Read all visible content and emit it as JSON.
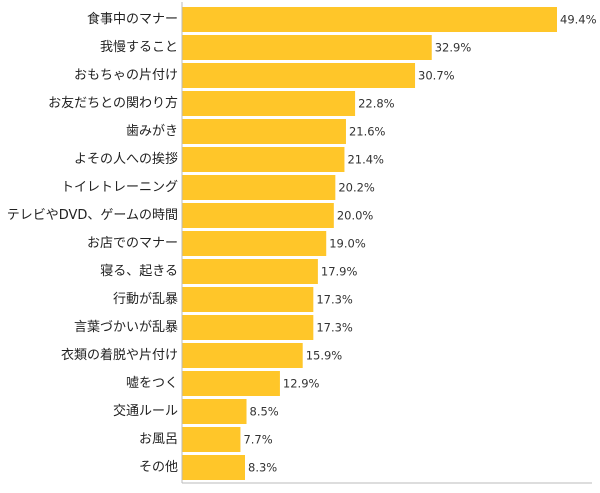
{
  "chart_data": {
    "type": "bar",
    "orientation": "horizontal",
    "categories": [
      "食事中のマナー",
      "我慢すること",
      "おもちゃの片付け",
      "お友だちとの関わり方",
      "歯みがき",
      "よその人への挨拶",
      "トイレトレーニング",
      "テレビやDVD、ゲームの時間",
      "お店でのマナー",
      "寝る、起きる",
      "行動が乱暴",
      "言葉づかいが乱暴",
      "衣類の着脱や片付け",
      "嘘をつく",
      "交通ルール",
      "お風呂",
      "その他"
    ],
    "values": [
      49.4,
      32.9,
      30.7,
      22.8,
      21.6,
      21.4,
      20.2,
      20.0,
      19.0,
      17.9,
      17.3,
      17.3,
      15.9,
      12.9,
      8.5,
      7.7,
      8.3
    ],
    "value_labels": [
      "49.4%",
      "32.9%",
      "30.7%",
      "22.8%",
      "21.6%",
      "21.4%",
      "20.2%",
      "20.0%",
      "19.0%",
      "17.9%",
      "17.3%",
      "17.3%",
      "15.9%",
      "12.9%",
      "8.5%",
      "7.7%",
      "8.3%"
    ],
    "xlim": [
      0,
      49.4
    ],
    "grid": false,
    "legend": "none",
    "bar_color": "#ffc629",
    "axis_color": "#bbbbbb"
  }
}
